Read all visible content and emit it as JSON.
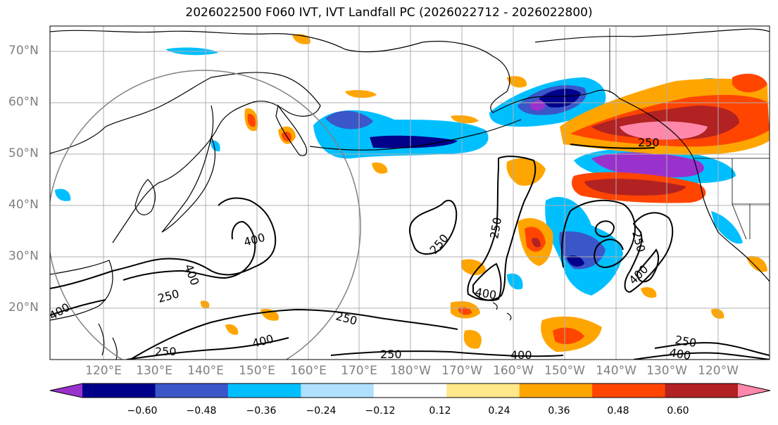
{
  "title": "2026022500 F060 IVT, IVT Landfall PC (2026022712 - 2026022800)",
  "lat_labels": [
    "70°N",
    "60°N",
    "50°N",
    "40°N",
    "30°N",
    "20°N"
  ],
  "lon_labels": [
    "120°E",
    "130°E",
    "140°E",
    "150°E",
    "160°E",
    "170°E",
    "180°W",
    "170°W",
    "160°W",
    "150°W",
    "140°W",
    "130°W",
    "120°W"
  ],
  "contour_labels": [
    "250",
    "400",
    "400",
    "250",
    "400",
    "250",
    "400",
    "250",
    "400",
    "250",
    "400",
    "250",
    "250",
    "400",
    "250",
    "400",
    "250"
  ],
  "colorbar": {
    "ticks": [
      "−0.60",
      "−0.48",
      "−0.36",
      "−0.24",
      "−0.12",
      "0.12",
      "0.24",
      "0.36",
      "0.48",
      "0.60"
    ],
    "colors": [
      "#9932CC",
      "#00008B",
      "#3A56C8",
      "#00BFFF",
      "#B0E0FF",
      "#FFFFFF",
      "#FFE88A",
      "#FFA500",
      "#FF4500",
      "#B22222",
      "#FF88AA"
    ]
  }
}
